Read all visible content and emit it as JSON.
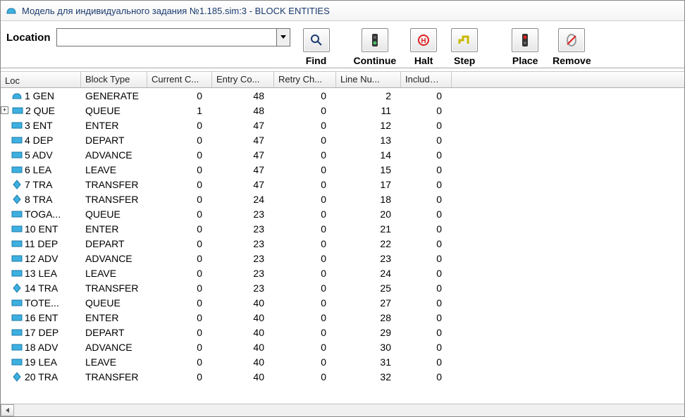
{
  "window": {
    "title": "Модель для индивидуального задания №1.185.sim:3  -  BLOCK ENTITIES"
  },
  "toolbar": {
    "location_label": "Location",
    "location_value": "",
    "buttons": {
      "find": {
        "label": "Find"
      },
      "continue": {
        "label": "Continue"
      },
      "halt": {
        "label": "Halt"
      },
      "step": {
        "label": "Step"
      },
      "place": {
        "label": "Place"
      },
      "remove": {
        "label": "Remove"
      }
    }
  },
  "table": {
    "columns": {
      "loc": "Loc",
      "block_type": "Block Type",
      "current_c": "Current C...",
      "entry_co": "Entry Co...",
      "retry_ch": "Retry Ch...",
      "line_nu": "Line Nu...",
      "include": "Include-..."
    },
    "rows": [
      {
        "icon": "gen",
        "expand": null,
        "loc": "1 GEN",
        "bt": "GENERATE",
        "cc": 0,
        "ec": 48,
        "rc": 0,
        "ln": 2,
        "inc": 0
      },
      {
        "icon": "rect",
        "expand": "plus",
        "loc": "2 QUE",
        "bt": "QUEUE",
        "cc": 1,
        "ec": 48,
        "rc": 0,
        "ln": 11,
        "inc": 0
      },
      {
        "icon": "rect",
        "expand": null,
        "loc": "3 ENT",
        "bt": "ENTER",
        "cc": 0,
        "ec": 47,
        "rc": 0,
        "ln": 12,
        "inc": 0
      },
      {
        "icon": "rect",
        "expand": null,
        "loc": "4 DEP",
        "bt": "DEPART",
        "cc": 0,
        "ec": 47,
        "rc": 0,
        "ln": 13,
        "inc": 0
      },
      {
        "icon": "rect",
        "expand": null,
        "loc": "5 ADV",
        "bt": "ADVANCE",
        "cc": 0,
        "ec": 47,
        "rc": 0,
        "ln": 14,
        "inc": 0
      },
      {
        "icon": "rect",
        "expand": null,
        "loc": "6 LEA",
        "bt": "LEAVE",
        "cc": 0,
        "ec": 47,
        "rc": 0,
        "ln": 15,
        "inc": 0
      },
      {
        "icon": "diamond",
        "expand": null,
        "loc": "7 TRA",
        "bt": "TRANSFER",
        "cc": 0,
        "ec": 47,
        "rc": 0,
        "ln": 17,
        "inc": 0
      },
      {
        "icon": "diamond",
        "expand": null,
        "loc": "8 TRA",
        "bt": "TRANSFER",
        "cc": 0,
        "ec": 24,
        "rc": 0,
        "ln": 18,
        "inc": 0
      },
      {
        "icon": "rect",
        "expand": null,
        "loc": "TOGA...",
        "bt": "QUEUE",
        "cc": 0,
        "ec": 23,
        "rc": 0,
        "ln": 20,
        "inc": 0
      },
      {
        "icon": "rect",
        "expand": null,
        "loc": "10 ENT",
        "bt": "ENTER",
        "cc": 0,
        "ec": 23,
        "rc": 0,
        "ln": 21,
        "inc": 0
      },
      {
        "icon": "rect",
        "expand": null,
        "loc": "11 DEP",
        "bt": "DEPART",
        "cc": 0,
        "ec": 23,
        "rc": 0,
        "ln": 22,
        "inc": 0
      },
      {
        "icon": "rect",
        "expand": null,
        "loc": "12 ADV",
        "bt": "ADVANCE",
        "cc": 0,
        "ec": 23,
        "rc": 0,
        "ln": 23,
        "inc": 0
      },
      {
        "icon": "rect",
        "expand": null,
        "loc": "13 LEA",
        "bt": "LEAVE",
        "cc": 0,
        "ec": 23,
        "rc": 0,
        "ln": 24,
        "inc": 0
      },
      {
        "icon": "diamond",
        "expand": null,
        "loc": "14 TRA",
        "bt": "TRANSFER",
        "cc": 0,
        "ec": 23,
        "rc": 0,
        "ln": 25,
        "inc": 0
      },
      {
        "icon": "rect",
        "expand": null,
        "loc": "TOTE...",
        "bt": "QUEUE",
        "cc": 0,
        "ec": 40,
        "rc": 0,
        "ln": 27,
        "inc": 0
      },
      {
        "icon": "rect",
        "expand": null,
        "loc": "16 ENT",
        "bt": "ENTER",
        "cc": 0,
        "ec": 40,
        "rc": 0,
        "ln": 28,
        "inc": 0
      },
      {
        "icon": "rect",
        "expand": null,
        "loc": "17 DEP",
        "bt": "DEPART",
        "cc": 0,
        "ec": 40,
        "rc": 0,
        "ln": 29,
        "inc": 0
      },
      {
        "icon": "rect",
        "expand": null,
        "loc": "18 ADV",
        "bt": "ADVANCE",
        "cc": 0,
        "ec": 40,
        "rc": 0,
        "ln": 30,
        "inc": 0
      },
      {
        "icon": "rect",
        "expand": null,
        "loc": "19 LEA",
        "bt": "LEAVE",
        "cc": 0,
        "ec": 40,
        "rc": 0,
        "ln": 31,
        "inc": 0
      },
      {
        "icon": "diamond",
        "expand": null,
        "loc": "20 TRA",
        "bt": "TRANSFER",
        "cc": 0,
        "ec": 40,
        "rc": 0,
        "ln": 32,
        "inc": 0
      }
    ]
  },
  "colors": {
    "title_text": "#1a3a6e",
    "icon_cyan": "#3db0e0",
    "icon_cyan_stroke": "#1a7aa8",
    "icon_green": "#4bbf6b",
    "icon_red": "#e02020",
    "icon_yellow": "#c9b800"
  }
}
